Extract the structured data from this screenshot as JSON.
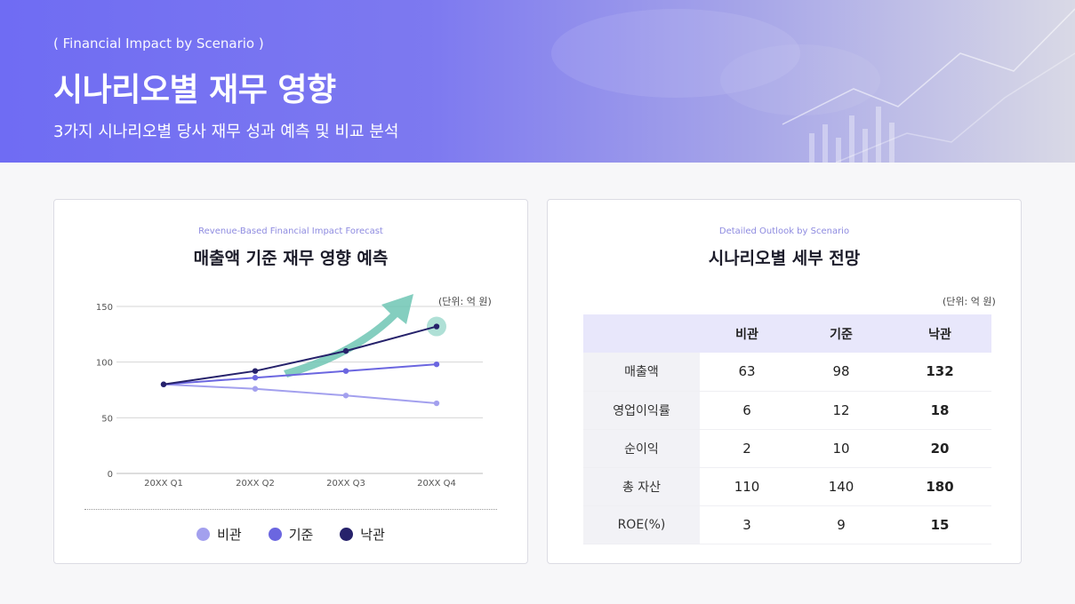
{
  "header": {
    "subtitle_en": "( Financial Impact by Scenario )",
    "title": "시나리오별 재무 영향",
    "description": "3가지 시나리오별 당사 재무 성과 예측 및 비교 분석"
  },
  "colors": {
    "accent": "#6f6cf3",
    "pessimistic": "#a3a0ee",
    "base": "#6b66e0",
    "optimistic": "#26226b",
    "arrow": "#6ec6b4"
  },
  "left_card": {
    "eyebrow": "Revenue-Based Financial Impact Forecast",
    "title": "매출액 기준 재무 영향 예측",
    "unit": "(단위: 억 원)"
  },
  "right_card": {
    "eyebrow": "Detailed Outlook by Scenario",
    "title": "시나리오별 세부 전망",
    "unit": "(단위: 억 원)",
    "table": {
      "columns": [
        "비관",
        "기준",
        "낙관"
      ],
      "rows": [
        {
          "label": "매출액",
          "values": [
            "63",
            "98",
            "132"
          ]
        },
        {
          "label": "영업이익률",
          "values": [
            "6",
            "12",
            "18"
          ]
        },
        {
          "label": "순이익",
          "values": [
            "2",
            "10",
            "20"
          ]
        },
        {
          "label": "총 자산",
          "values": [
            "110",
            "140",
            "180"
          ]
        },
        {
          "label": "ROE(%)",
          "values": [
            "3",
            "9",
            "15"
          ]
        }
      ]
    }
  },
  "chart_data": {
    "type": "line",
    "categories": [
      "20XX Q1",
      "20XX Q2",
      "20XX Q3",
      "20XX Q4"
    ],
    "series": [
      {
        "name": "비관",
        "values": [
          80,
          76,
          70,
          63
        ]
      },
      {
        "name": "기준",
        "values": [
          80,
          86,
          92,
          98
        ]
      },
      {
        "name": "낙관",
        "values": [
          80,
          92,
          110,
          132
        ]
      }
    ],
    "yticks": [
      "0",
      "50",
      "100",
      "150"
    ],
    "ylim": [
      0,
      150
    ],
    "grid": true,
    "legend_position": "bottom"
  }
}
